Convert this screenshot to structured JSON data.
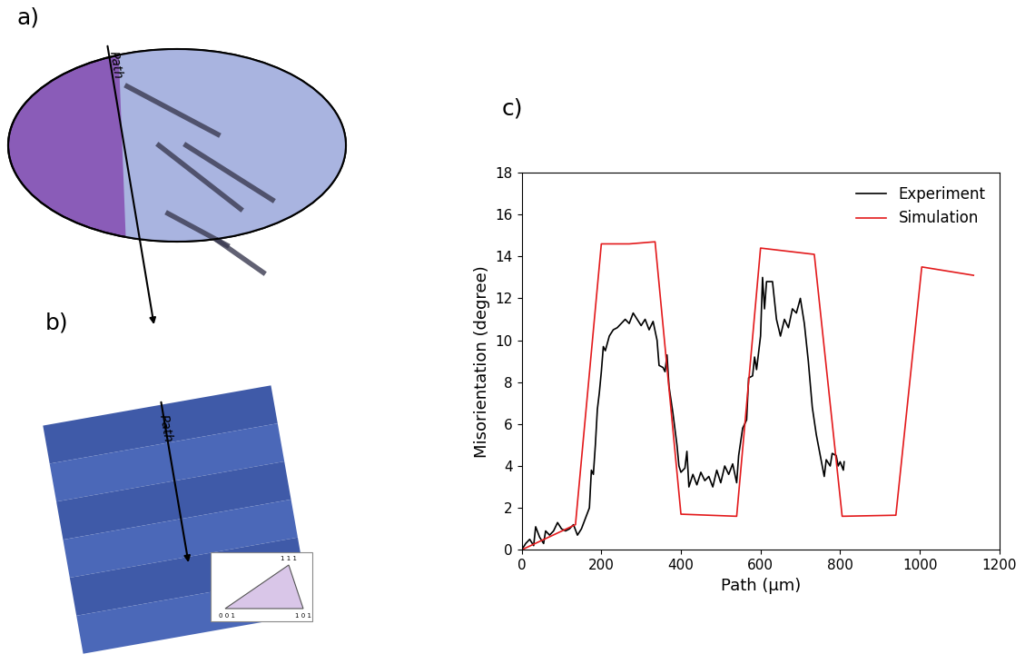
{
  "chart_data": {
    "type": "line",
    "xlabel": "Path (µm)",
    "ylabel": "Misorientation (degree)",
    "xlim": [
      0,
      1200
    ],
    "xticks": [
      0,
      200,
      400,
      600,
      800,
      1000,
      1200
    ],
    "ylim": [
      0,
      18
    ],
    "yticks": [
      0,
      2,
      4,
      6,
      8,
      10,
      12,
      14,
      16,
      18
    ],
    "legend": "upper right",
    "series": [
      {
        "name": "Experiment",
        "color": "#000000",
        "x": [
          0,
          10,
          20,
          30,
          35,
          45,
          55,
          60,
          70,
          80,
          90,
          100,
          110,
          120,
          130,
          140,
          150,
          160,
          170,
          175,
          180,
          185,
          190,
          195,
          200,
          205,
          210,
          220,
          230,
          240,
          250,
          260,
          270,
          280,
          290,
          300,
          310,
          320,
          330,
          340,
          345,
          355,
          360,
          365,
          370,
          380,
          390,
          395,
          400,
          410,
          415,
          420,
          430,
          440,
          450,
          460,
          470,
          480,
          490,
          500,
          510,
          520,
          530,
          540,
          545,
          555,
          565,
          570,
          580,
          585,
          590,
          600,
          605,
          610,
          615,
          630,
          640,
          650,
          660,
          670,
          680,
          690,
          700,
          710,
          720,
          730,
          740,
          750,
          760,
          765,
          775,
          780,
          790,
          795,
          800,
          808,
          810
        ],
        "values": [
          0,
          0.3,
          0.5,
          0.2,
          1.1,
          0.6,
          0.3,
          0.9,
          0.7,
          0.9,
          1.3,
          1.0,
          0.9,
          1.0,
          1.2,
          0.7,
          1.0,
          1.5,
          2.0,
          3.8,
          3.6,
          5.0,
          6.7,
          7.5,
          8.5,
          9.7,
          9.5,
          10.2,
          10.5,
          10.6,
          10.8,
          11.0,
          10.8,
          11.3,
          11.0,
          10.7,
          11.0,
          10.5,
          10.9,
          10.0,
          8.8,
          8.7,
          8.5,
          9.3,
          7.8,
          6.5,
          5.0,
          4.0,
          3.7,
          3.9,
          4.7,
          3.0,
          3.6,
          3.1,
          3.7,
          3.3,
          3.5,
          3.0,
          3.8,
          3.2,
          4.0,
          3.6,
          4.1,
          3.2,
          4.5,
          5.8,
          6.2,
          8.2,
          8.3,
          9.2,
          8.6,
          10.2,
          13.0,
          11.5,
          12.8,
          12.8,
          11.0,
          10.2,
          11.0,
          10.6,
          11.5,
          11.3,
          12.0,
          10.8,
          9.0,
          6.8,
          5.5,
          4.5,
          3.5,
          4.3,
          4.0,
          4.6,
          4.5,
          4.0,
          4.2,
          3.8,
          4.2
        ]
      },
      {
        "name": "Simulation",
        "color": "#e31a1c",
        "x": [
          0,
          135,
          200,
          270,
          335,
          400,
          540,
          600,
          735,
          805,
          940,
          1005,
          1070,
          1135
        ],
        "values": [
          0,
          1.2,
          14.6,
          14.6,
          14.7,
          1.7,
          1.6,
          14.4,
          14.1,
          1.6,
          1.65,
          13.5,
          13.3,
          13.1
        ]
      }
    ]
  },
  "panel_labels": [
    "a)",
    "b)",
    "c)"
  ],
  "path_label": "Path",
  "ipf_labels": [
    "1 1 1",
    "0 0 1",
    "1 0 1"
  ]
}
